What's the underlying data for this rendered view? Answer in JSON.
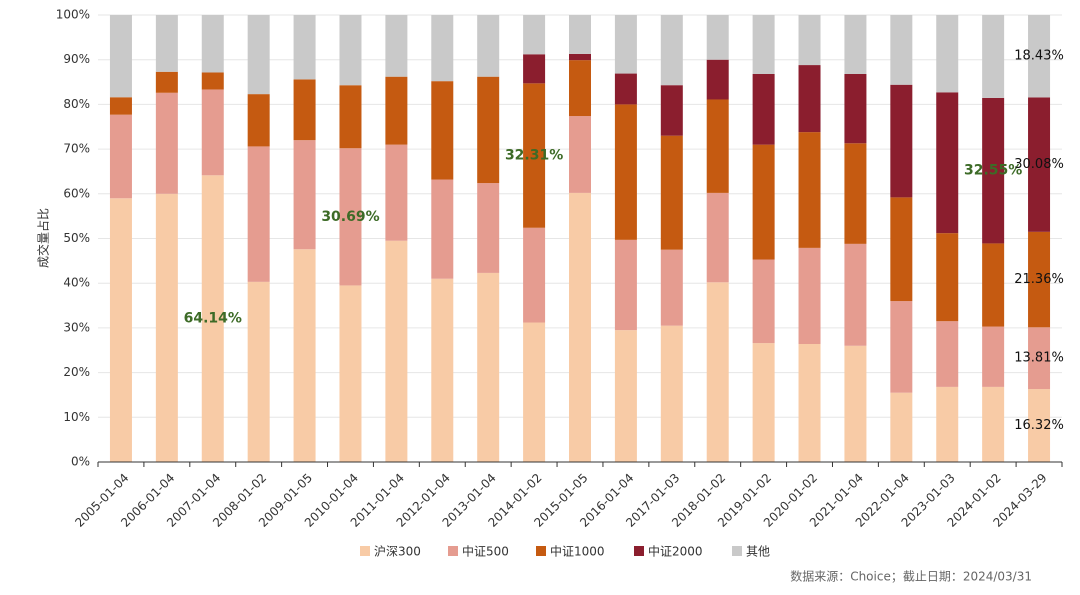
{
  "chart_data": {
    "type": "stacked_bar",
    "y_label": "成交量占比",
    "source": "数据来源：Choice；截止日期：2024/03/31",
    "categories": [
      "2005-01-04",
      "2006-01-04",
      "2007-01-04",
      "2008-01-02",
      "2009-01-05",
      "2010-01-04",
      "2011-01-04",
      "2012-01-04",
      "2013-01-04",
      "2014-01-02",
      "2015-01-05",
      "2016-01-04",
      "2017-01-03",
      "2018-01-02",
      "2019-01-02",
      "2020-01-02",
      "2021-01-04",
      "2022-01-04",
      "2023-01-03",
      "2024-01-02",
      "2024-03-29"
    ],
    "series": [
      {
        "name": "沪深300",
        "color": "#f8cba6",
        "values": [
          59,
          60,
          64.14,
          40.3,
          47.6,
          39.5,
          49.5,
          41,
          42.3,
          31.2,
          60.2,
          29.5,
          30.5,
          40.2,
          26.6,
          26.4,
          26,
          15.5,
          16.8,
          16.8,
          16.32
        ],
        "value_labels": [
          null,
          null,
          "64.14%",
          null,
          null,
          null,
          null,
          null,
          null,
          null,
          null,
          null,
          null,
          null,
          null,
          null,
          null,
          null,
          null,
          null,
          "16.32%"
        ]
      },
      {
        "name": "中证500",
        "color": "#e59c90",
        "values": [
          18.7,
          22.6,
          19.2,
          30.3,
          24.4,
          30.69,
          21.5,
          22.2,
          20.1,
          21.2,
          17.2,
          20.2,
          17,
          20,
          18.7,
          21.5,
          22.8,
          20.5,
          14.7,
          13.5,
          13.81
        ],
        "value_labels": [
          null,
          null,
          null,
          null,
          null,
          "30.69%",
          null,
          null,
          null,
          null,
          null,
          null,
          null,
          null,
          null,
          null,
          null,
          null,
          null,
          null,
          "13.81%"
        ]
      },
      {
        "name": "中证1000",
        "color": "#c55a11",
        "values": [
          3.9,
          4.7,
          3.8,
          11.7,
          13.6,
          14.1,
          15.2,
          22,
          23.8,
          32.31,
          12.5,
          30.3,
          25.5,
          20.9,
          25.7,
          25.9,
          22.5,
          23.2,
          19.7,
          18.6,
          21.36
        ],
        "value_labels": [
          null,
          null,
          null,
          null,
          null,
          null,
          null,
          null,
          null,
          "32.31%",
          null,
          null,
          null,
          null,
          null,
          null,
          null,
          null,
          null,
          null,
          "21.36%"
        ]
      },
      {
        "name": "中证2000",
        "color": "#8b1e2e",
        "values": [
          0,
          0,
          0,
          0,
          0,
          0,
          0,
          0,
          0,
          6.5,
          1.4,
          6.9,
          11.3,
          8.9,
          15.8,
          15,
          15.5,
          25.2,
          31.5,
          32.55,
          30.08
        ],
        "value_labels": [
          null,
          null,
          null,
          null,
          null,
          null,
          null,
          null,
          null,
          null,
          null,
          null,
          null,
          null,
          null,
          null,
          null,
          null,
          null,
          "32.55%",
          "30.08%"
        ]
      },
      {
        "name": "其他",
        "color": "#c9c9c9",
        "values": [
          18.4,
          12.7,
          12.86,
          17.7,
          14.4,
          15.71,
          13.8,
          14.8,
          13.8,
          8.79,
          8.7,
          13.1,
          15.7,
          10,
          13.2,
          11.2,
          13.2,
          15.6,
          17.3,
          18.55,
          18.43
        ],
        "value_labels": [
          null,
          null,
          null,
          null,
          null,
          null,
          null,
          null,
          null,
          null,
          null,
          null,
          null,
          null,
          null,
          null,
          null,
          null,
          null,
          null,
          "18.43%"
        ]
      }
    ],
    "ylim": [
      0,
      100
    ],
    "yticks": [
      {
        "value": 0,
        "label": "0%"
      },
      {
        "value": 10,
        "label": "10%"
      },
      {
        "value": 20,
        "label": "20%"
      },
      {
        "value": 30,
        "label": "30%"
      },
      {
        "value": 40,
        "label": "40%"
      },
      {
        "value": 50,
        "label": "50%"
      },
      {
        "value": 60,
        "label": "60%"
      },
      {
        "value": 70,
        "label": "70%"
      },
      {
        "value": 80,
        "label": "80%"
      },
      {
        "value": 90,
        "label": "90%"
      },
      {
        "value": 100,
        "label": "100%"
      }
    ],
    "grid": true,
    "legend": "bottom"
  }
}
